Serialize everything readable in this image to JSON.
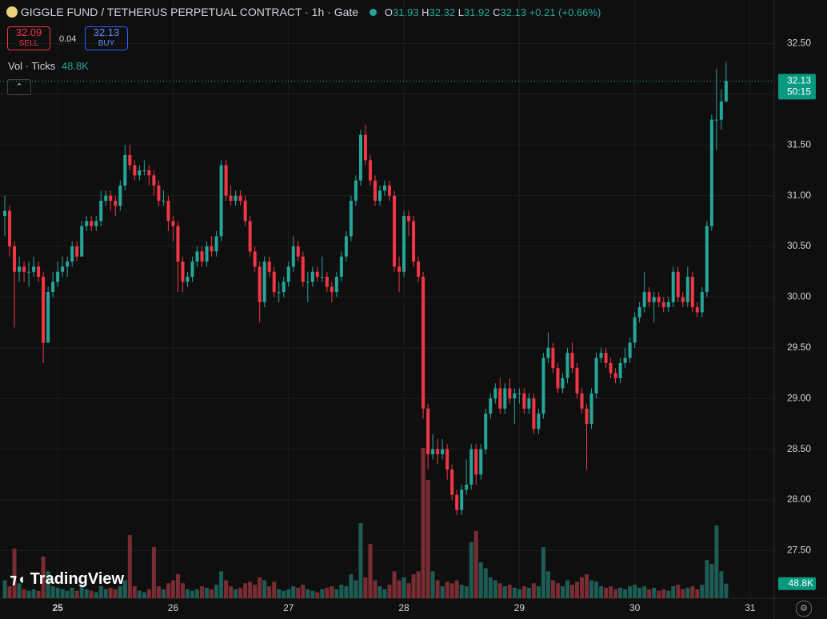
{
  "header": {
    "symbol": "GIGGLE FUND / TETHERUS PERPETUAL CONTRACT · 1h · Gate",
    "o_label": "O",
    "open": "31.93",
    "h_label": "H",
    "high": "32.32",
    "l_label": "L",
    "low": "31.92",
    "c_label": "C",
    "close": "32.13",
    "change": "+0.21 (+0.66%)",
    "sell_price": "32.09",
    "sell": "SELL",
    "spread": "0.04",
    "buy_price": "32.13",
    "buy": "BUY",
    "vol_legend": "Vol · Ticks",
    "vol_value": "48.8K",
    "logo": "TradingView"
  },
  "chart_data": {
    "type": "candlestick",
    "up_color": "#26a69a",
    "down_color": "#f23645",
    "up_volume_color": "#1d5c55",
    "down_volume_color": "#7a2c33",
    "ylim": [
      27.03,
      32.93
    ],
    "yticks": [
      {
        "value": 27.5,
        "label": "27.50"
      },
      {
        "value": 28,
        "label": "28.00"
      },
      {
        "value": 28.5,
        "label": "28.50"
      },
      {
        "value": 29,
        "label": "29.00"
      },
      {
        "value": 29.5,
        "label": "29.50"
      },
      {
        "value": 30,
        "label": "30.00"
      },
      {
        "value": 30.5,
        "label": "30.50"
      },
      {
        "value": 31,
        "label": "31.00"
      },
      {
        "value": 31.5,
        "label": "31.50"
      },
      {
        "value": 32,
        "label": "32.00"
      },
      {
        "value": 32.5,
        "label": "32.50"
      }
    ],
    "y2lim": [
      0,
      2000
    ],
    "xlim": [
      -1,
      160
    ],
    "xticks": [
      {
        "value": 11,
        "label": "25"
      },
      {
        "value": 35,
        "label": "26"
      },
      {
        "value": 59,
        "label": "27"
      },
      {
        "value": 83,
        "label": "28"
      },
      {
        "value": 107,
        "label": "29"
      },
      {
        "value": 131,
        "label": "30"
      },
      {
        "value": 155,
        "label": "31"
      }
    ],
    "grid": true,
    "last_price": 32.13,
    "last_price_label": "32.13",
    "countdown": "50:15",
    "volume_last_label": "48.8K",
    "candles": [
      [
        30.8,
        31.0,
        30.6,
        30.85
      ],
      [
        30.85,
        30.9,
        30.4,
        30.5
      ],
      [
        30.5,
        30.55,
        29.7,
        30.25
      ],
      [
        30.25,
        30.4,
        30.15,
        30.3
      ],
      [
        30.3,
        30.35,
        30.15,
        30.25
      ],
      [
        30.25,
        30.35,
        30.1,
        30.25
      ],
      [
        30.25,
        30.4,
        30.2,
        30.3
      ],
      [
        30.3,
        30.35,
        30.15,
        30.2
      ],
      [
        30.2,
        30.25,
        29.35,
        29.55
      ],
      [
        29.55,
        30.1,
        29.55,
        30.05
      ],
      [
        30.05,
        30.25,
        30.0,
        30.15
      ],
      [
        30.15,
        30.35,
        30.1,
        30.25
      ],
      [
        30.25,
        30.4,
        30.2,
        30.3
      ],
      [
        30.3,
        30.4,
        30.2,
        30.35
      ],
      [
        30.35,
        30.55,
        30.3,
        30.5
      ],
      [
        30.5,
        30.55,
        30.35,
        30.4
      ],
      [
        30.4,
        30.75,
        30.4,
        30.7
      ],
      [
        30.7,
        30.8,
        30.65,
        30.75
      ],
      [
        30.75,
        30.8,
        30.65,
        30.7
      ],
      [
        30.7,
        30.8,
        30.65,
        30.75
      ],
      [
        30.75,
        31.05,
        30.7,
        30.95
      ],
      [
        30.95,
        31.05,
        30.9,
        31.0
      ],
      [
        31.0,
        31.05,
        30.85,
        30.95
      ],
      [
        30.95,
        31.0,
        30.8,
        30.9
      ],
      [
        30.9,
        31.15,
        30.85,
        31.1
      ],
      [
        31.1,
        31.5,
        31.05,
        31.4
      ],
      [
        31.4,
        31.5,
        31.25,
        31.3
      ],
      [
        31.3,
        31.35,
        31.15,
        31.2
      ],
      [
        31.2,
        31.3,
        31.15,
        31.25
      ],
      [
        31.25,
        31.35,
        31.2,
        31.25
      ],
      [
        31.25,
        31.3,
        31.1,
        31.2
      ],
      [
        31.2,
        31.25,
        31.0,
        31.1
      ],
      [
        31.1,
        31.15,
        30.9,
        30.95
      ],
      [
        30.95,
        31.05,
        30.9,
        30.95
      ],
      [
        30.95,
        31.0,
        30.65,
        30.75
      ],
      [
        30.75,
        30.8,
        30.55,
        30.7
      ],
      [
        30.7,
        30.75,
        30.05,
        30.35
      ],
      [
        30.35,
        30.4,
        30.05,
        30.15
      ],
      [
        30.15,
        30.25,
        30.1,
        30.2
      ],
      [
        30.2,
        30.4,
        30.15,
        30.35
      ],
      [
        30.35,
        30.5,
        30.3,
        30.45
      ],
      [
        30.45,
        30.5,
        30.3,
        30.35
      ],
      [
        30.35,
        30.55,
        30.3,
        30.5
      ],
      [
        30.5,
        30.6,
        30.4,
        30.45
      ],
      [
        30.45,
        30.65,
        30.4,
        30.6
      ],
      [
        30.6,
        31.35,
        30.55,
        31.3
      ],
      [
        31.3,
        31.35,
        30.95,
        31.0
      ],
      [
        31.0,
        31.1,
        30.9,
        30.95
      ],
      [
        30.95,
        31.05,
        30.9,
        31.0
      ],
      [
        31.0,
        31.05,
        30.9,
        30.95
      ],
      [
        30.95,
        31.0,
        30.7,
        30.75
      ],
      [
        30.75,
        30.8,
        30.4,
        30.45
      ],
      [
        30.45,
        30.5,
        30.25,
        30.3
      ],
      [
        30.3,
        30.35,
        29.75,
        29.95
      ],
      [
        29.95,
        30.4,
        29.9,
        30.35
      ],
      [
        30.35,
        30.4,
        30.2,
        30.25
      ],
      [
        30.25,
        30.3,
        30.0,
        30.05
      ],
      [
        30.05,
        30.15,
        29.95,
        30.05
      ],
      [
        30.05,
        30.2,
        30.0,
        30.15
      ],
      [
        30.15,
        30.35,
        30.1,
        30.3
      ],
      [
        30.3,
        30.6,
        30.25,
        30.5
      ],
      [
        30.5,
        30.55,
        30.35,
        30.4
      ],
      [
        30.4,
        30.45,
        30.1,
        30.15
      ],
      [
        30.15,
        30.25,
        29.95,
        30.15
      ],
      [
        30.15,
        30.3,
        30.1,
        30.25
      ],
      [
        30.25,
        30.3,
        30.15,
        30.2
      ],
      [
        30.2,
        30.4,
        30.15,
        30.2
      ],
      [
        30.2,
        30.25,
        30.05,
        30.1
      ],
      [
        30.1,
        30.15,
        29.95,
        30.05
      ],
      [
        30.05,
        30.25,
        30.0,
        30.2
      ],
      [
        30.2,
        30.45,
        30.15,
        30.4
      ],
      [
        30.4,
        30.65,
        30.35,
        30.6
      ],
      [
        30.6,
        31.0,
        30.55,
        30.95
      ],
      [
        30.95,
        31.2,
        30.9,
        31.15
      ],
      [
        31.15,
        31.65,
        31.1,
        31.6
      ],
      [
        31.6,
        31.7,
        31.3,
        31.35
      ],
      [
        31.35,
        31.4,
        31.1,
        31.15
      ],
      [
        31.15,
        31.2,
        30.9,
        30.95
      ],
      [
        30.95,
        31.1,
        30.9,
        31.05
      ],
      [
        31.05,
        31.15,
        31.0,
        31.1
      ],
      [
        31.1,
        31.15,
        30.95,
        31.0
      ],
      [
        31.0,
        31.05,
        30.25,
        30.3
      ],
      [
        30.3,
        30.4,
        30.05,
        30.25
      ],
      [
        30.25,
        30.85,
        30.2,
        30.8
      ],
      [
        30.8,
        30.85,
        30.6,
        30.75
      ],
      [
        30.75,
        30.8,
        30.3,
        30.35
      ],
      [
        30.35,
        30.4,
        30.15,
        30.2
      ],
      [
        30.2,
        30.25,
        28.8,
        28.9
      ],
      [
        28.9,
        28.95,
        28.3,
        28.45
      ],
      [
        28.45,
        28.65,
        28.4,
        28.5
      ],
      [
        28.5,
        28.6,
        28.35,
        28.45
      ],
      [
        28.45,
        28.6,
        28.4,
        28.5
      ],
      [
        28.5,
        28.55,
        28.2,
        28.3
      ],
      [
        28.3,
        28.35,
        28.0,
        28.05
      ],
      [
        28.05,
        28.1,
        27.85,
        27.9
      ],
      [
        27.9,
        28.15,
        27.85,
        28.1
      ],
      [
        28.1,
        28.4,
        28.05,
        28.15
      ],
      [
        28.15,
        28.55,
        28.1,
        28.5
      ],
      [
        28.5,
        28.55,
        28.15,
        28.25
      ],
      [
        28.25,
        28.55,
        28.2,
        28.5
      ],
      [
        28.5,
        28.9,
        28.45,
        28.85
      ],
      [
        28.85,
        29.05,
        28.8,
        29.0
      ],
      [
        29.0,
        29.15,
        28.95,
        29.1
      ],
      [
        29.1,
        29.2,
        28.85,
        28.9
      ],
      [
        28.9,
        29.15,
        28.85,
        29.1
      ],
      [
        29.1,
        29.2,
        28.95,
        29.0
      ],
      [
        29.0,
        29.1,
        28.75,
        29.05
      ],
      [
        29.05,
        29.1,
        28.95,
        29.05
      ],
      [
        29.05,
        29.1,
        28.85,
        28.9
      ],
      [
        28.9,
        29.05,
        28.85,
        29.0
      ],
      [
        29.0,
        29.05,
        28.65,
        28.7
      ],
      [
        28.7,
        28.9,
        28.65,
        28.85
      ],
      [
        28.85,
        29.45,
        28.8,
        29.4
      ],
      [
        29.4,
        29.65,
        29.35,
        29.5
      ],
      [
        29.5,
        29.55,
        29.25,
        29.3
      ],
      [
        29.3,
        29.35,
        29.05,
        29.1
      ],
      [
        29.1,
        29.25,
        29.05,
        29.2
      ],
      [
        29.2,
        29.5,
        29.15,
        29.45
      ],
      [
        29.45,
        29.55,
        29.25,
        29.3
      ],
      [
        29.3,
        29.35,
        29.0,
        29.05
      ],
      [
        29.05,
        29.1,
        28.85,
        28.9
      ],
      [
        28.9,
        28.95,
        28.3,
        28.75
      ],
      [
        28.75,
        29.1,
        28.7,
        29.05
      ],
      [
        29.05,
        29.45,
        29.0,
        29.4
      ],
      [
        29.4,
        29.5,
        29.35,
        29.45
      ],
      [
        29.45,
        29.5,
        29.3,
        29.35
      ],
      [
        29.35,
        29.4,
        29.2,
        29.25
      ],
      [
        29.25,
        29.3,
        29.15,
        29.2
      ],
      [
        29.2,
        29.4,
        29.15,
        29.35
      ],
      [
        29.35,
        29.5,
        29.3,
        29.4
      ],
      [
        29.4,
        29.6,
        29.35,
        29.55
      ],
      [
        29.55,
        29.85,
        29.5,
        29.8
      ],
      [
        29.8,
        29.95,
        29.75,
        29.9
      ],
      [
        29.9,
        30.25,
        29.85,
        30.05
      ],
      [
        30.05,
        30.1,
        29.9,
        29.95
      ],
      [
        29.95,
        30.05,
        29.75,
        30.0
      ],
      [
        30.0,
        30.05,
        29.9,
        29.95
      ],
      [
        29.95,
        30.0,
        29.85,
        29.9
      ],
      [
        29.9,
        30.0,
        29.85,
        29.95
      ],
      [
        29.95,
        30.3,
        29.9,
        30.25
      ],
      [
        30.25,
        30.3,
        29.95,
        30.0
      ],
      [
        30.0,
        30.05,
        29.9,
        29.95
      ],
      [
        29.95,
        30.3,
        29.9,
        30.2
      ],
      [
        30.2,
        30.25,
        29.85,
        29.9
      ],
      [
        29.9,
        29.95,
        29.8,
        29.85
      ],
      [
        29.85,
        30.1,
        29.8,
        30.05
      ],
      [
        30.05,
        30.75,
        30.0,
        30.7
      ],
      [
        30.7,
        31.8,
        30.65,
        31.75
      ],
      [
        31.75,
        32.25,
        31.45,
        31.75
      ],
      [
        31.75,
        32.05,
        31.65,
        31.93
      ],
      [
        31.93,
        32.32,
        31.92,
        32.13
      ]
    ],
    "volume": [
      60,
      40,
      166,
      50,
      30,
      25,
      30,
      25,
      139,
      90,
      40,
      35,
      30,
      25,
      35,
      25,
      45,
      30,
      25,
      20,
      40,
      30,
      35,
      30,
      40,
      60,
      211,
      40,
      25,
      20,
      30,
      171,
      40,
      30,
      50,
      60,
      80,
      50,
      30,
      25,
      30,
      40,
      35,
      30,
      45,
      90,
      60,
      40,
      30,
      35,
      50,
      55,
      45,
      70,
      60,
      40,
      55,
      30,
      25,
      30,
      40,
      35,
      45,
      30,
      25,
      20,
      30,
      35,
      40,
      30,
      45,
      40,
      80,
      60,
      251,
      70,
      182,
      60,
      40,
      30,
      45,
      90,
      60,
      70,
      50,
      80,
      90,
      503,
      396,
      90,
      60,
      40,
      55,
      50,
      60,
      45,
      40,
      187,
      225,
      120,
      100,
      70,
      60,
      50,
      40,
      45,
      35,
      30,
      40,
      35,
      50,
      40,
      171,
      90,
      60,
      50,
      40,
      60,
      45,
      55,
      70,
      80,
      60,
      55,
      40,
      35,
      40,
      30,
      35,
      30,
      40,
      45,
      35,
      40,
      30,
      35,
      25,
      30,
      25,
      40,
      45,
      30,
      35,
      40,
      30,
      45,
      128,
      115,
      243,
      90,
      48.8
    ]
  }
}
